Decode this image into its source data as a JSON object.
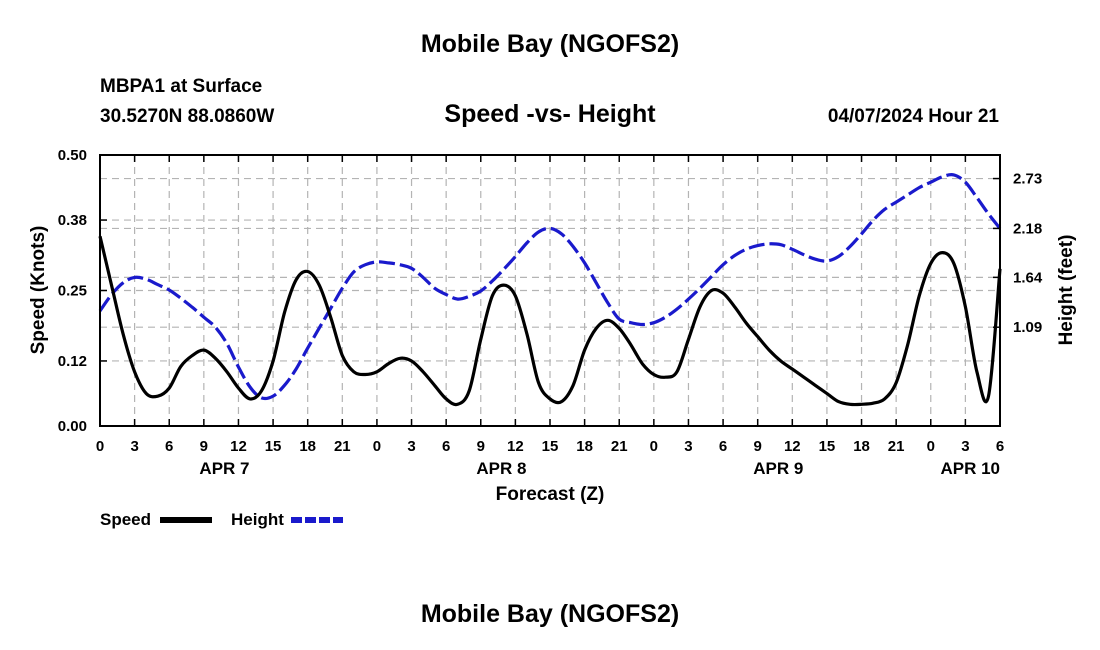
{
  "header": {
    "title": "Mobile Bay (NGOFS2)",
    "station": "MBPA1 at Surface",
    "coordinates": "30.5270N  88.0860W",
    "subtitle": "Speed -vs- Height",
    "datetime": "04/07/2024 Hour 21"
  },
  "footer": {
    "title": "Mobile Bay (NGOFS2)"
  },
  "chart_data": {
    "type": "line",
    "title": "Speed -vs- Height",
    "xlabel": "Forecast (Z)",
    "ylabel": "Speed (Knots)",
    "y2label": "Height (feet)",
    "x_unit": "forecast hours from 04/07 00Z",
    "xlim": [
      0,
      78
    ],
    "ylim": [
      0,
      0.5
    ],
    "y2lim": [
      0.0,
      2.99
    ],
    "x_ticks": [
      0,
      3,
      6,
      9,
      12,
      15,
      18,
      21,
      24,
      27,
      30,
      33,
      36,
      39,
      42,
      45,
      48,
      51,
      54,
      57,
      60,
      63,
      66,
      69,
      72,
      75,
      78
    ],
    "x_tick_labels": [
      "0",
      "3",
      "6",
      "9",
      "12",
      "15",
      "18",
      "21",
      "0",
      "3",
      "6",
      "9",
      "12",
      "15",
      "18",
      "21",
      "0",
      "3",
      "6",
      "9",
      "12",
      "15",
      "18",
      "21",
      "0",
      "3",
      "6"
    ],
    "date_labels": [
      {
        "label": "APR 7",
        "x": 12
      },
      {
        "label": "APR 8",
        "x": 36
      },
      {
        "label": "APR 9",
        "x": 60
      },
      {
        "label": "APR 10",
        "x": 78
      }
    ],
    "y_ticks": [
      0.0,
      0.12,
      0.25,
      0.38,
      0.5
    ],
    "y_tick_labels": [
      "0.00",
      "0.12",
      "0.25",
      "0.38",
      "0.50"
    ],
    "y2_ticks": [
      1.09,
      1.64,
      2.18,
      2.73
    ],
    "y2_tick_labels": [
      "1.09",
      "1.64",
      "2.18",
      "2.73"
    ],
    "grid": true,
    "legend": {
      "placement": "bottom-left",
      "entries": [
        "Speed",
        "Height"
      ]
    },
    "series": [
      {
        "name": "Speed",
        "axis": "left",
        "color": "#000000",
        "dash": "solid",
        "x": [
          0,
          1,
          2,
          3,
          4,
          5,
          6,
          7,
          8,
          9,
          10,
          11,
          12,
          13,
          14,
          15,
          16,
          17,
          18,
          19,
          20,
          21,
          22,
          23,
          24,
          25,
          26,
          27,
          28,
          29,
          30,
          31,
          32,
          33,
          34,
          35,
          36,
          37,
          38,
          39,
          40,
          41,
          42,
          43,
          44,
          45,
          46,
          47,
          48,
          49,
          50,
          51,
          52,
          53,
          54,
          55,
          56,
          57,
          58,
          59,
          60,
          61,
          62,
          63,
          64,
          65,
          66,
          67,
          68,
          69,
          70,
          71,
          72,
          73,
          74,
          75,
          76,
          77,
          78
        ],
        "values": [
          0.35,
          0.26,
          0.17,
          0.1,
          0.06,
          0.055,
          0.07,
          0.11,
          0.13,
          0.14,
          0.125,
          0.1,
          0.07,
          0.05,
          0.065,
          0.12,
          0.21,
          0.27,
          0.285,
          0.26,
          0.2,
          0.13,
          0.1,
          0.095,
          0.1,
          0.115,
          0.125,
          0.12,
          0.1,
          0.075,
          0.05,
          0.04,
          0.065,
          0.16,
          0.24,
          0.26,
          0.24,
          0.17,
          0.08,
          0.05,
          0.045,
          0.075,
          0.14,
          0.18,
          0.195,
          0.18,
          0.15,
          0.115,
          0.095,
          0.09,
          0.1,
          0.16,
          0.22,
          0.25,
          0.245,
          0.22,
          0.19,
          0.165,
          0.14,
          0.12,
          0.105,
          0.09,
          0.075,
          0.06,
          0.045,
          0.04,
          0.04,
          0.042,
          0.05,
          0.08,
          0.15,
          0.24,
          0.3,
          0.32,
          0.3,
          0.22,
          0.1,
          0.055,
          0.29
        ]
      },
      {
        "name": "Height",
        "axis": "right",
        "color": "#1a1acc",
        "dash": "dashed",
        "x": [
          0,
          1,
          2,
          3,
          4,
          5,
          6,
          7,
          8,
          9,
          10,
          11,
          12,
          13,
          14,
          15,
          16,
          17,
          18,
          19,
          20,
          21,
          22,
          23,
          24,
          25,
          26,
          27,
          28,
          29,
          30,
          31,
          32,
          33,
          34,
          35,
          36,
          37,
          38,
          39,
          40,
          41,
          42,
          43,
          44,
          45,
          46,
          47,
          48,
          49,
          50,
          51,
          52,
          53,
          54,
          55,
          56,
          57,
          58,
          59,
          60,
          61,
          62,
          63,
          64,
          65,
          66,
          67,
          68,
          69,
          70,
          71,
          72,
          73,
          74,
          75,
          76,
          77,
          78
        ],
        "values": [
          1.27,
          1.45,
          1.58,
          1.64,
          1.62,
          1.56,
          1.5,
          1.41,
          1.31,
          1.2,
          1.09,
          0.91,
          0.65,
          0.43,
          0.31,
          0.33,
          0.45,
          0.63,
          0.86,
          1.08,
          1.3,
          1.52,
          1.7,
          1.78,
          1.81,
          1.8,
          1.78,
          1.74,
          1.64,
          1.52,
          1.45,
          1.4,
          1.43,
          1.49,
          1.6,
          1.73,
          1.87,
          2.02,
          2.14,
          2.18,
          2.12,
          1.98,
          1.8,
          1.58,
          1.36,
          1.18,
          1.14,
          1.12,
          1.14,
          1.2,
          1.29,
          1.4,
          1.52,
          1.65,
          1.78,
          1.88,
          1.95,
          1.99,
          2.01,
          2.0,
          1.95,
          1.89,
          1.84,
          1.82,
          1.87,
          1.98,
          2.12,
          2.27,
          2.39,
          2.47,
          2.55,
          2.63,
          2.69,
          2.75,
          2.77,
          2.69,
          2.52,
          2.34,
          2.18
        ]
      }
    ]
  }
}
